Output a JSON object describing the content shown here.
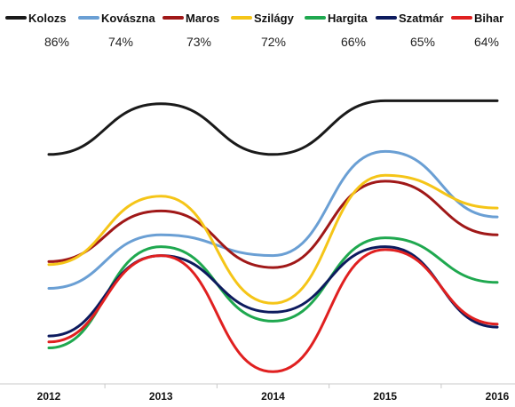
{
  "chart_data": {
    "type": "line",
    "x": [
      "2012",
      "2013",
      "2014",
      "2015",
      "2016"
    ],
    "ylim": [
      0,
      100
    ],
    "grid": false,
    "legend_position": "top",
    "series": [
      {
        "name": "Kolozs",
        "color": "#1a1a1a",
        "percent": "86%",
        "values": [
          75,
          92,
          75,
          93,
          93
        ]
      },
      {
        "name": "Kovászna",
        "color": "#6a9fd4",
        "percent": "74%",
        "values": [
          30,
          48,
          41,
          76,
          54
        ]
      },
      {
        "name": "Maros",
        "color": "#a01818",
        "percent": "73%",
        "values": [
          39,
          56,
          37,
          66,
          48
        ]
      },
      {
        "name": "Szilágy",
        "color": "#f5c518",
        "percent": "72%",
        "values": [
          38,
          61,
          25,
          68,
          57
        ]
      },
      {
        "name": "Hargita",
        "color": "#1fa84f",
        "percent": "66%",
        "values": [
          10,
          44,
          19,
          47,
          32
        ]
      },
      {
        "name": "Szatmár",
        "color": "#0d1b5e",
        "percent": "65%",
        "values": [
          14,
          41,
          22,
          44,
          17
        ]
      },
      {
        "name": "Bihar",
        "color": "#e02020",
        "percent": "64%",
        "values": [
          12,
          41,
          2,
          43,
          18
        ]
      }
    ]
  }
}
